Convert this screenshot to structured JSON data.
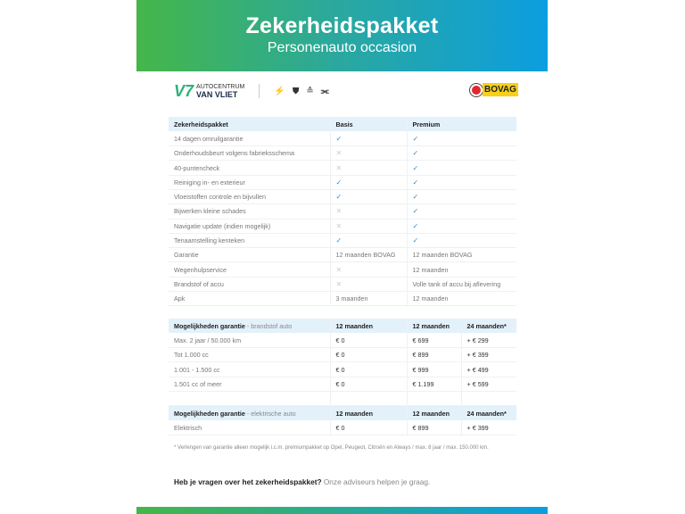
{
  "banner": {
    "title": "Zekerheidspakket",
    "subtitle": "Personenauto occasion"
  },
  "logos": {
    "dealer_line1": "AUTOCENTRUM",
    "dealer_line2": "VAN VLIET",
    "brands": [
      "OPEL",
      "Peugeot",
      "Citroën",
      "Always"
    ],
    "bovag": "BOVAG"
  },
  "colors": {
    "gradient_start": "#45b649",
    "gradient_end": "#0b9ee0",
    "header_row": "#e3f1fb",
    "check": "#2c8fd0"
  },
  "package_table": {
    "headers": [
      "Zekerheidspakket",
      "Basis",
      "Premium"
    ],
    "rows": [
      {
        "label": "14 dagen omruilgarantie",
        "basis": "check",
        "premium": "check"
      },
      {
        "label": "Onderhoudsbeurt volgens fabrieksschema",
        "basis": "cross",
        "premium": "check"
      },
      {
        "label": "40-puntencheck",
        "basis": "cross",
        "premium": "check"
      },
      {
        "label": "Reiniging in- en exterieur",
        "basis": "check",
        "premium": "check"
      },
      {
        "label": "Vloeistoffen controle en bijvullen",
        "basis": "check",
        "premium": "check"
      },
      {
        "label": "Bijwerken kleine schades",
        "basis": "cross",
        "premium": "check"
      },
      {
        "label": "Navigatie update (indien mogelijk)",
        "basis": "cross",
        "premium": "check"
      },
      {
        "label": "Tenaamstelling kenteken",
        "basis": "check",
        "premium": "check"
      },
      {
        "label": "Garantie",
        "basis": "12 maanden BOVAG",
        "premium": "12 maanden BOVAG"
      },
      {
        "label": "Wegenhulpservice",
        "basis": "cross",
        "premium": "12 maanden"
      },
      {
        "label": "Brandstof of accu",
        "basis": "cross",
        "premium": "Volle tank of accu bij aflevering"
      },
      {
        "label": "Apk",
        "basis": "3 maanden",
        "premium": "12 maanden"
      }
    ]
  },
  "fuel_table": {
    "title": "Mogelijkheden garantie",
    "subtitle": " - brandstof auto",
    "headers": [
      "12 maanden",
      "12 maanden",
      "24 maanden*"
    ],
    "rows": [
      [
        "Max. 2 jaar / 50.000 km",
        "€ 0",
        "€ 699",
        "+ € 299"
      ],
      [
        "Tot 1.000 cc",
        "€ 0",
        "€ 899",
        "+ € 399"
      ],
      [
        "1.001 - 1.500 cc",
        "€ 0",
        "€ 999",
        "+ € 499"
      ],
      [
        "1.501 cc of meer",
        "€ 0",
        "€ 1.199",
        "+ € 599"
      ]
    ]
  },
  "ev_table": {
    "title": "Mogelijkheden garantie",
    "subtitle": " - elektrische auto",
    "headers": [
      "12 maanden",
      "12 maanden",
      "24 maanden*"
    ],
    "rows": [
      [
        "Elektrisch",
        "€ 0",
        "€ 899",
        "+ € 399"
      ]
    ]
  },
  "footnote": "* Verlengen van garantie alleen mogelijk i.c.m. premiumpakket op Opel, Peugeot, Citroën en Always / max. 8 jaar / max. 150.000 km.",
  "question": {
    "bold": "Heb je vragen over het zekerheidspakket?",
    "rest": " Onze adviseurs helpen je graag."
  }
}
